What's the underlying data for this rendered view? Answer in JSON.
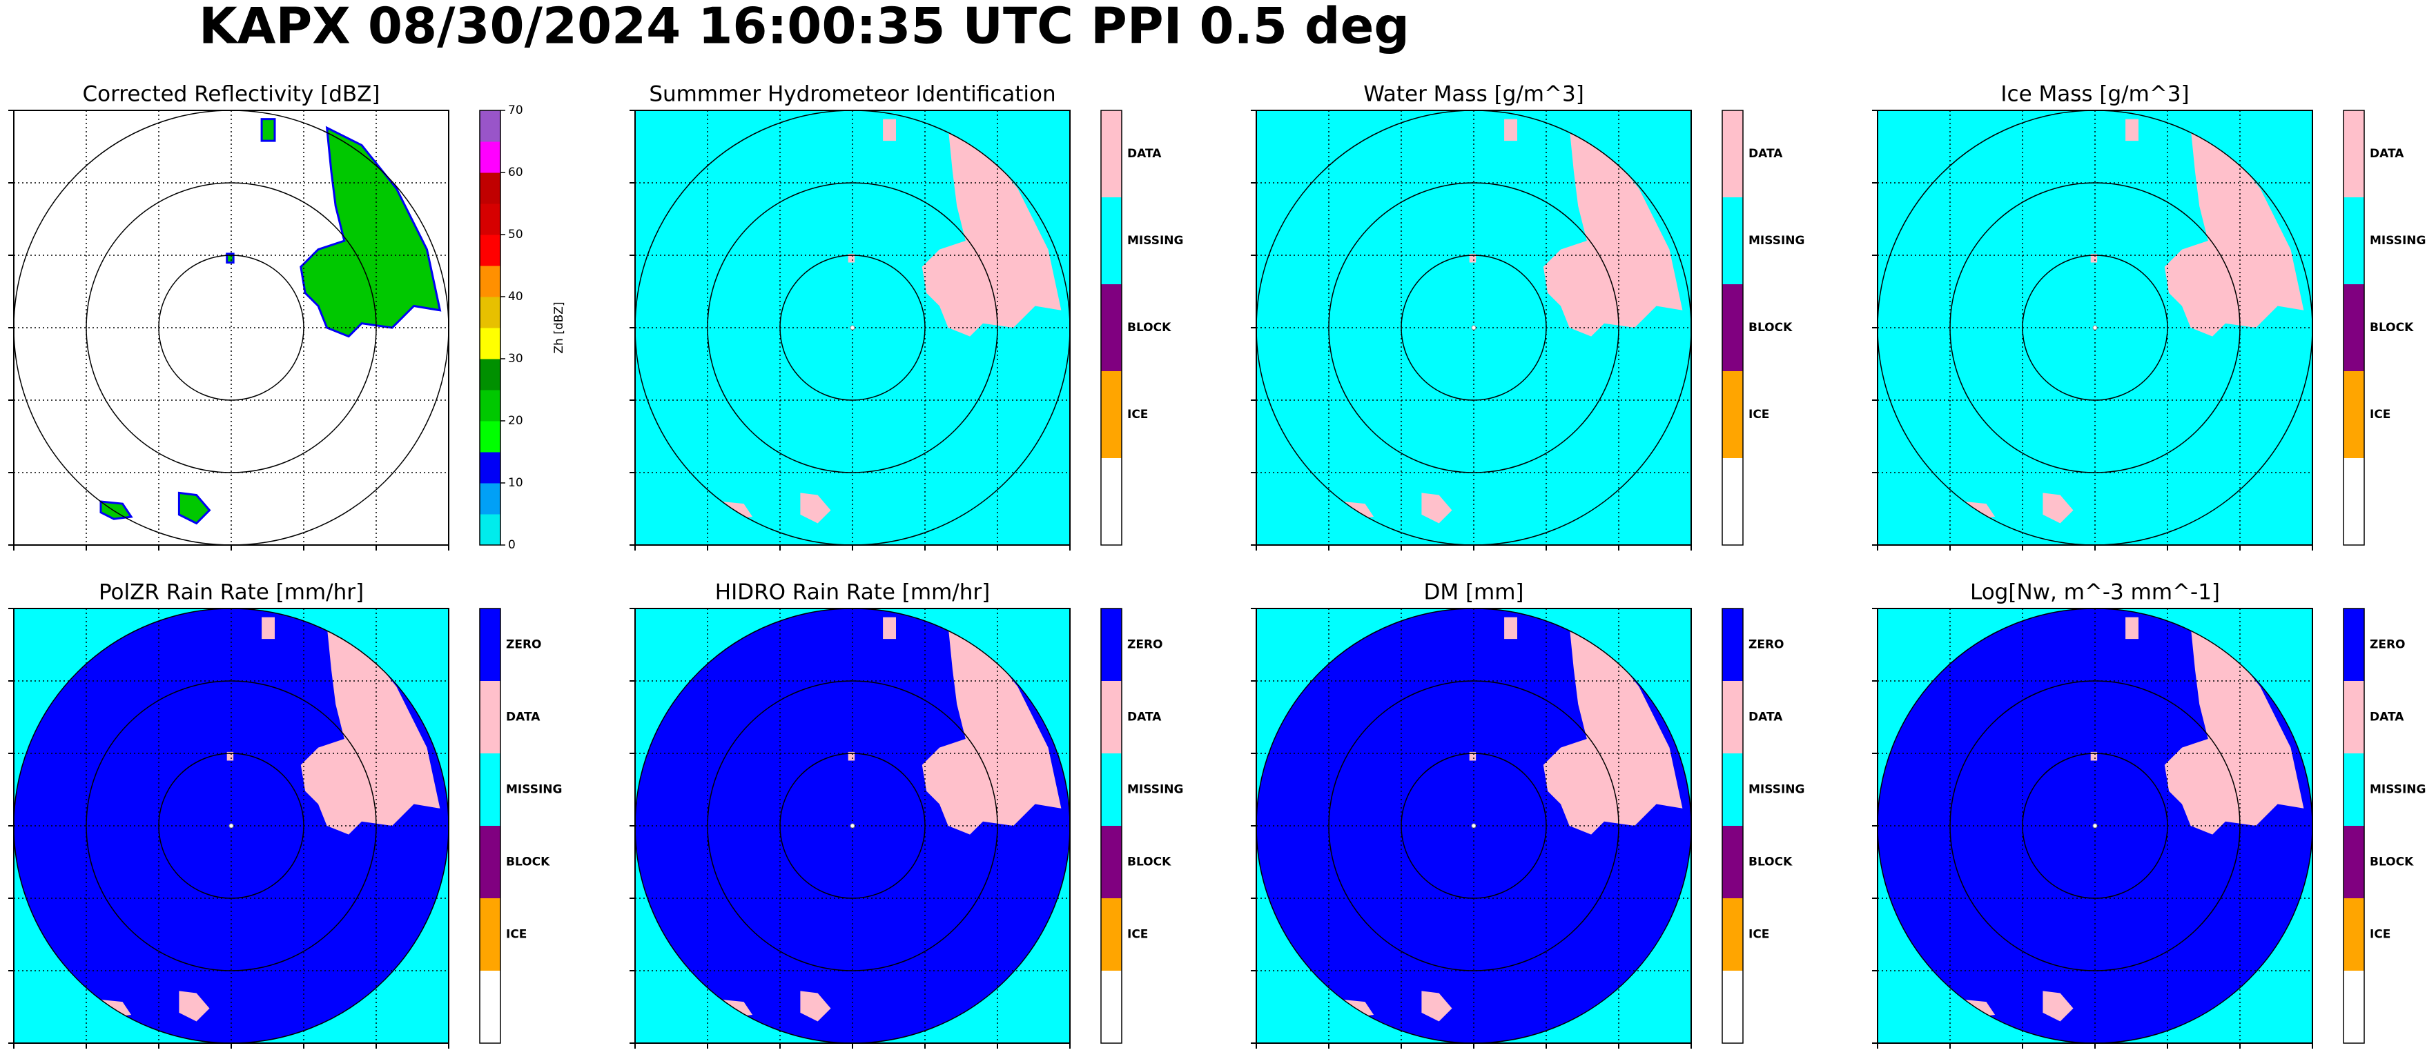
{
  "title": "KAPX 08/30/2024 16:00:35 UTC PPI 0.5 deg",
  "chart_data": [
    {
      "type": "ppi",
      "title": "Corrected Reflectivity [dBZ]",
      "background": "#ffffff",
      "echo_color": "#00c800",
      "echo_edge": "#0000f6",
      "grid": true,
      "colorbar": {
        "label": "Zh [dBZ]",
        "lim": [
          0,
          70
        ],
        "ticks": [
          0,
          10,
          20,
          30,
          40,
          50,
          60,
          70
        ],
        "colors": [
          "#00ecec",
          "#01a0f6",
          "#0000f6",
          "#00ff00",
          "#00c800",
          "#009000",
          "#ffff00",
          "#e7c000",
          "#ff9000",
          "#ff0000",
          "#d60000",
          "#c00000",
          "#ff00ff",
          "#9955c9"
        ]
      }
    },
    {
      "type": "ppi",
      "title": "Summmer Hydrometeor Identification",
      "background": "#00ffff",
      "echo_color": "#ffc0cb",
      "grid": true,
      "colorbar": {
        "classes": [
          "DATA",
          "MISSING",
          "BLOCK",
          "ICE",
          null
        ],
        "colors": [
          "#ffc0cb",
          "#00ffff",
          "#800080",
          "#ffa500",
          "#ffffff"
        ]
      }
    },
    {
      "type": "ppi",
      "title": "Water Mass [g/m^3]",
      "background": "#00ffff",
      "echo_color": "#ffc0cb",
      "grid": true,
      "colorbar": {
        "classes": [
          "DATA",
          "MISSING",
          "BLOCK",
          "ICE",
          null
        ],
        "colors": [
          "#ffc0cb",
          "#00ffff",
          "#800080",
          "#ffa500",
          "#ffffff"
        ]
      }
    },
    {
      "type": "ppi",
      "title": "Ice Mass [g/m^3]",
      "background": "#00ffff",
      "echo_color": "#ffc0cb",
      "grid": true,
      "colorbar": {
        "classes": [
          "DATA",
          "MISSING",
          "BLOCK",
          "ICE",
          null
        ],
        "colors": [
          "#ffc0cb",
          "#00ffff",
          "#800080",
          "#ffa500",
          "#ffffff"
        ]
      }
    },
    {
      "type": "ppi",
      "title": "PolZR Rain Rate [mm/hr]",
      "background": "#00ffff",
      "disk_color": "#0000ff",
      "echo_color": "#ffc0cb",
      "grid": true,
      "colorbar": {
        "classes": [
          "ZERO",
          "DATA",
          "MISSING",
          "BLOCK",
          "ICE",
          null
        ],
        "colors": [
          "#0000ff",
          "#ffc0cb",
          "#00ffff",
          "#800080",
          "#ffa500",
          "#ffffff"
        ]
      }
    },
    {
      "type": "ppi",
      "title": "HIDRO Rain Rate [mm/hr]",
      "background": "#00ffff",
      "disk_color": "#0000ff",
      "echo_color": "#ffc0cb",
      "grid": true,
      "colorbar": {
        "classes": [
          "ZERO",
          "DATA",
          "MISSING",
          "BLOCK",
          "ICE",
          null
        ],
        "colors": [
          "#0000ff",
          "#ffc0cb",
          "#00ffff",
          "#800080",
          "#ffa500",
          "#ffffff"
        ]
      }
    },
    {
      "type": "ppi",
      "title": "DM [mm]",
      "background": "#00ffff",
      "disk_color": "#0000ff",
      "echo_color": "#ffc0cb",
      "grid": true,
      "colorbar": {
        "classes": [
          "ZERO",
          "DATA",
          "MISSING",
          "BLOCK",
          "ICE",
          null
        ],
        "colors": [
          "#0000ff",
          "#ffc0cb",
          "#00ffff",
          "#800080",
          "#ffa500",
          "#ffffff"
        ]
      }
    },
    {
      "type": "ppi",
      "title": "Log[Nw, m^-3 mm^-1]",
      "background": "#00ffff",
      "disk_color": "#0000ff",
      "echo_color": "#ffc0cb",
      "grid": true,
      "colorbar": {
        "classes": [
          "ZERO",
          "DATA",
          "MISSING",
          "BLOCK",
          "ICE",
          null
        ],
        "colors": [
          "#0000ff",
          "#ffc0cb",
          "#00ffff",
          "#800080",
          "#ffa500",
          "#ffffff"
        ]
      }
    }
  ]
}
